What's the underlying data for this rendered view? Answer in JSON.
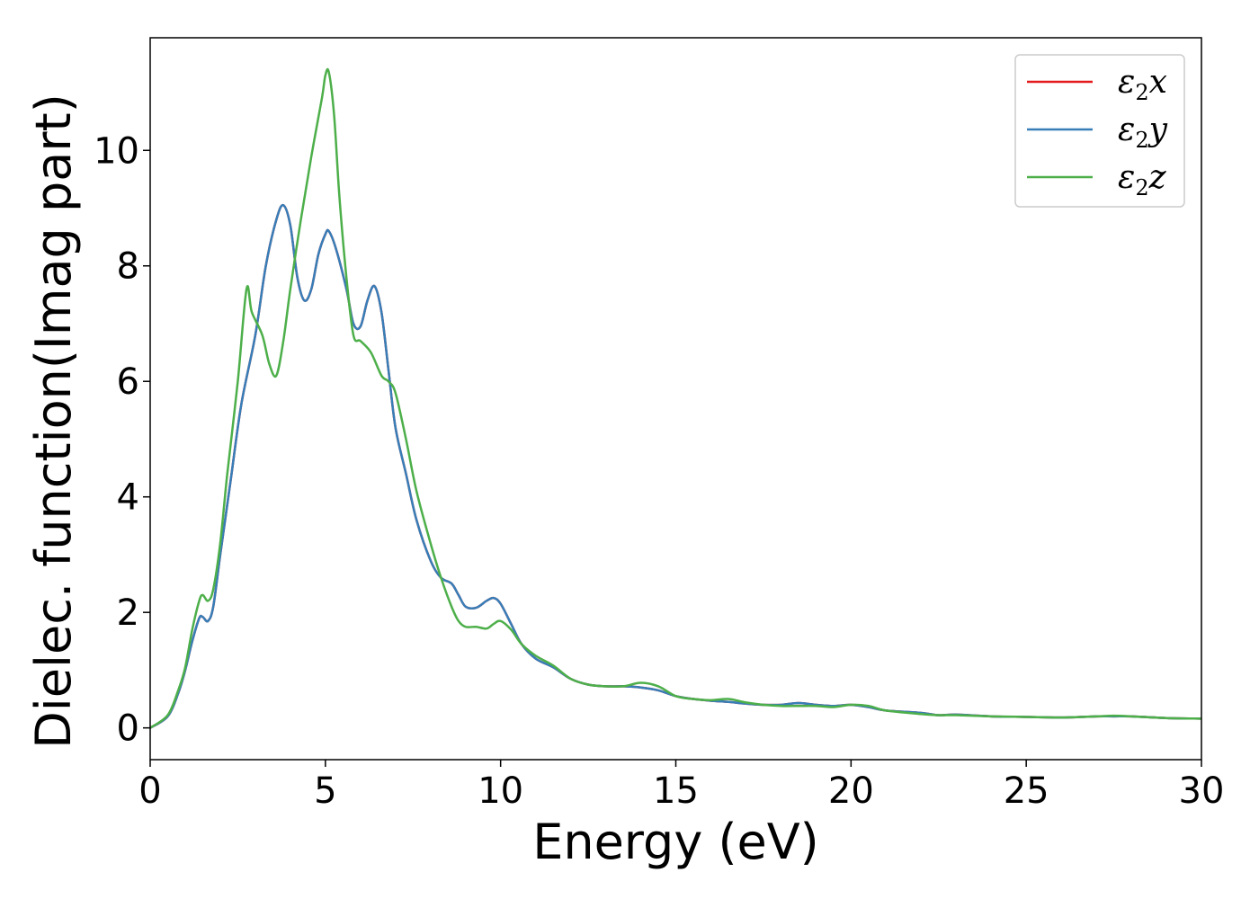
{
  "chart_data": {
    "type": "line",
    "xlabel": "Energy (eV)",
    "ylabel": "Dielec. function(Imag part)",
    "xlim": [
      0,
      30
    ],
    "ylim": [
      -0.55,
      11.95
    ],
    "xticks": [
      0,
      5,
      10,
      15,
      20,
      25,
      30
    ],
    "yticks": [
      0,
      2,
      4,
      6,
      8,
      10
    ],
    "grid": false,
    "legend_position": "top-right",
    "series": [
      {
        "name": "ε2x",
        "name_parts": {
          "symbol": "ε",
          "sub": "2",
          "axis": "x"
        },
        "color": "#e41a1c",
        "x": [
          0,
          0.5,
          0.8,
          1.0,
          1.2,
          1.4,
          1.5,
          1.65,
          1.8,
          2.0,
          2.3,
          2.6,
          3.0,
          3.3,
          3.6,
          3.8,
          4.0,
          4.2,
          4.4,
          4.6,
          4.8,
          5.0,
          5.1,
          5.3,
          5.6,
          5.8,
          6.0,
          6.2,
          6.4,
          6.6,
          6.8,
          7.0,
          7.3,
          7.6,
          8.0,
          8.3,
          8.6,
          8.8,
          9.0,
          9.3,
          9.6,
          9.8,
          10.0,
          10.3,
          10.6,
          11.0,
          11.5,
          12.0,
          12.5,
          13.0,
          13.5,
          14.0,
          14.5,
          15.0,
          15.5,
          16.0,
          16.5,
          17.0,
          17.5,
          18.0,
          18.5,
          19.0,
          19.5,
          20.0,
          20.5,
          21.0,
          22.0,
          22.5,
          23.0,
          24.0,
          25.0,
          26.0,
          27.0,
          27.5,
          28.0,
          29.0,
          30.0
        ],
        "y": [
          0,
          0.2,
          0.6,
          1.0,
          1.5,
          1.9,
          1.92,
          1.85,
          2.1,
          3.0,
          4.3,
          5.6,
          6.8,
          8.0,
          8.8,
          9.05,
          8.7,
          7.8,
          7.4,
          7.6,
          8.2,
          8.55,
          8.6,
          8.3,
          7.6,
          7.0,
          6.95,
          7.4,
          7.65,
          7.2,
          6.2,
          5.2,
          4.4,
          3.6,
          2.9,
          2.6,
          2.5,
          2.3,
          2.1,
          2.08,
          2.2,
          2.25,
          2.15,
          1.8,
          1.45,
          1.2,
          1.05,
          0.85,
          0.75,
          0.72,
          0.72,
          0.7,
          0.65,
          0.55,
          0.5,
          0.47,
          0.45,
          0.42,
          0.4,
          0.4,
          0.43,
          0.4,
          0.38,
          0.4,
          0.36,
          0.3,
          0.26,
          0.22,
          0.23,
          0.2,
          0.19,
          0.18,
          0.2,
          0.2,
          0.2,
          0.17,
          0.16
        ]
      },
      {
        "name": "ε2y",
        "name_parts": {
          "symbol": "ε",
          "sub": "2",
          "axis": "y"
        },
        "color": "#377eb8",
        "x": [
          0,
          0.5,
          0.8,
          1.0,
          1.2,
          1.4,
          1.5,
          1.65,
          1.8,
          2.0,
          2.3,
          2.6,
          3.0,
          3.3,
          3.6,
          3.8,
          4.0,
          4.2,
          4.4,
          4.6,
          4.8,
          5.0,
          5.1,
          5.3,
          5.6,
          5.8,
          6.0,
          6.2,
          6.4,
          6.6,
          6.8,
          7.0,
          7.3,
          7.6,
          8.0,
          8.3,
          8.6,
          8.8,
          9.0,
          9.3,
          9.6,
          9.8,
          10.0,
          10.3,
          10.6,
          11.0,
          11.5,
          12.0,
          12.5,
          13.0,
          13.5,
          14.0,
          14.5,
          15.0,
          15.5,
          16.0,
          16.5,
          17.0,
          17.5,
          18.0,
          18.5,
          19.0,
          19.5,
          20.0,
          20.5,
          21.0,
          22.0,
          22.5,
          23.0,
          24.0,
          25.0,
          26.0,
          27.0,
          27.5,
          28.0,
          29.0,
          30.0
        ],
        "y": [
          0,
          0.2,
          0.6,
          1.0,
          1.5,
          1.9,
          1.92,
          1.85,
          2.1,
          3.0,
          4.3,
          5.6,
          6.8,
          8.0,
          8.8,
          9.05,
          8.7,
          7.8,
          7.4,
          7.6,
          8.2,
          8.55,
          8.6,
          8.3,
          7.6,
          7.0,
          6.95,
          7.4,
          7.65,
          7.2,
          6.2,
          5.2,
          4.4,
          3.6,
          2.9,
          2.6,
          2.5,
          2.3,
          2.1,
          2.08,
          2.2,
          2.25,
          2.15,
          1.8,
          1.45,
          1.2,
          1.05,
          0.85,
          0.75,
          0.72,
          0.72,
          0.7,
          0.65,
          0.55,
          0.5,
          0.47,
          0.45,
          0.42,
          0.4,
          0.4,
          0.43,
          0.4,
          0.38,
          0.4,
          0.36,
          0.3,
          0.26,
          0.22,
          0.23,
          0.2,
          0.19,
          0.18,
          0.2,
          0.2,
          0.2,
          0.17,
          0.16
        ]
      },
      {
        "name": "ε2z",
        "name_parts": {
          "symbol": "ε",
          "sub": "2",
          "axis": "z"
        },
        "color": "#4daf4a",
        "x": [
          0,
          0.5,
          0.8,
          1.0,
          1.2,
          1.4,
          1.5,
          1.65,
          1.8,
          2.0,
          2.2,
          2.5,
          2.75,
          2.9,
          3.2,
          3.4,
          3.6,
          3.8,
          4.0,
          4.3,
          4.6,
          4.9,
          5.0,
          5.1,
          5.25,
          5.4,
          5.6,
          5.8,
          6.0,
          6.3,
          6.6,
          6.8,
          7.0,
          7.3,
          7.6,
          8.0,
          8.3,
          8.6,
          8.8,
          9.0,
          9.3,
          9.6,
          9.8,
          10.0,
          10.3,
          10.6,
          11.0,
          11.5,
          12.0,
          12.5,
          13.0,
          13.5,
          14.0,
          14.5,
          15.0,
          15.5,
          16.0,
          16.5,
          17.0,
          17.5,
          18.0,
          18.5,
          19.0,
          19.5,
          20.0,
          20.5,
          21.0,
          22.0,
          22.5,
          23.0,
          24.0,
          25.0,
          26.0,
          27.0,
          27.5,
          28.0,
          29.0,
          30.0
        ],
        "y": [
          0,
          0.22,
          0.65,
          1.05,
          1.7,
          2.2,
          2.3,
          2.2,
          2.4,
          3.2,
          4.4,
          6.0,
          7.6,
          7.2,
          6.8,
          6.3,
          6.1,
          6.7,
          7.6,
          8.8,
          9.9,
          10.9,
          11.3,
          11.35,
          10.6,
          9.2,
          7.8,
          6.8,
          6.7,
          6.5,
          6.1,
          6.0,
          5.8,
          5.0,
          4.1,
          3.2,
          2.6,
          2.1,
          1.85,
          1.75,
          1.75,
          1.72,
          1.8,
          1.85,
          1.7,
          1.45,
          1.25,
          1.08,
          0.85,
          0.75,
          0.72,
          0.72,
          0.78,
          0.72,
          0.55,
          0.5,
          0.48,
          0.5,
          0.44,
          0.4,
          0.38,
          0.38,
          0.38,
          0.36,
          0.4,
          0.38,
          0.3,
          0.24,
          0.22,
          0.22,
          0.2,
          0.19,
          0.18,
          0.2,
          0.21,
          0.2,
          0.17,
          0.16
        ]
      }
    ]
  }
}
